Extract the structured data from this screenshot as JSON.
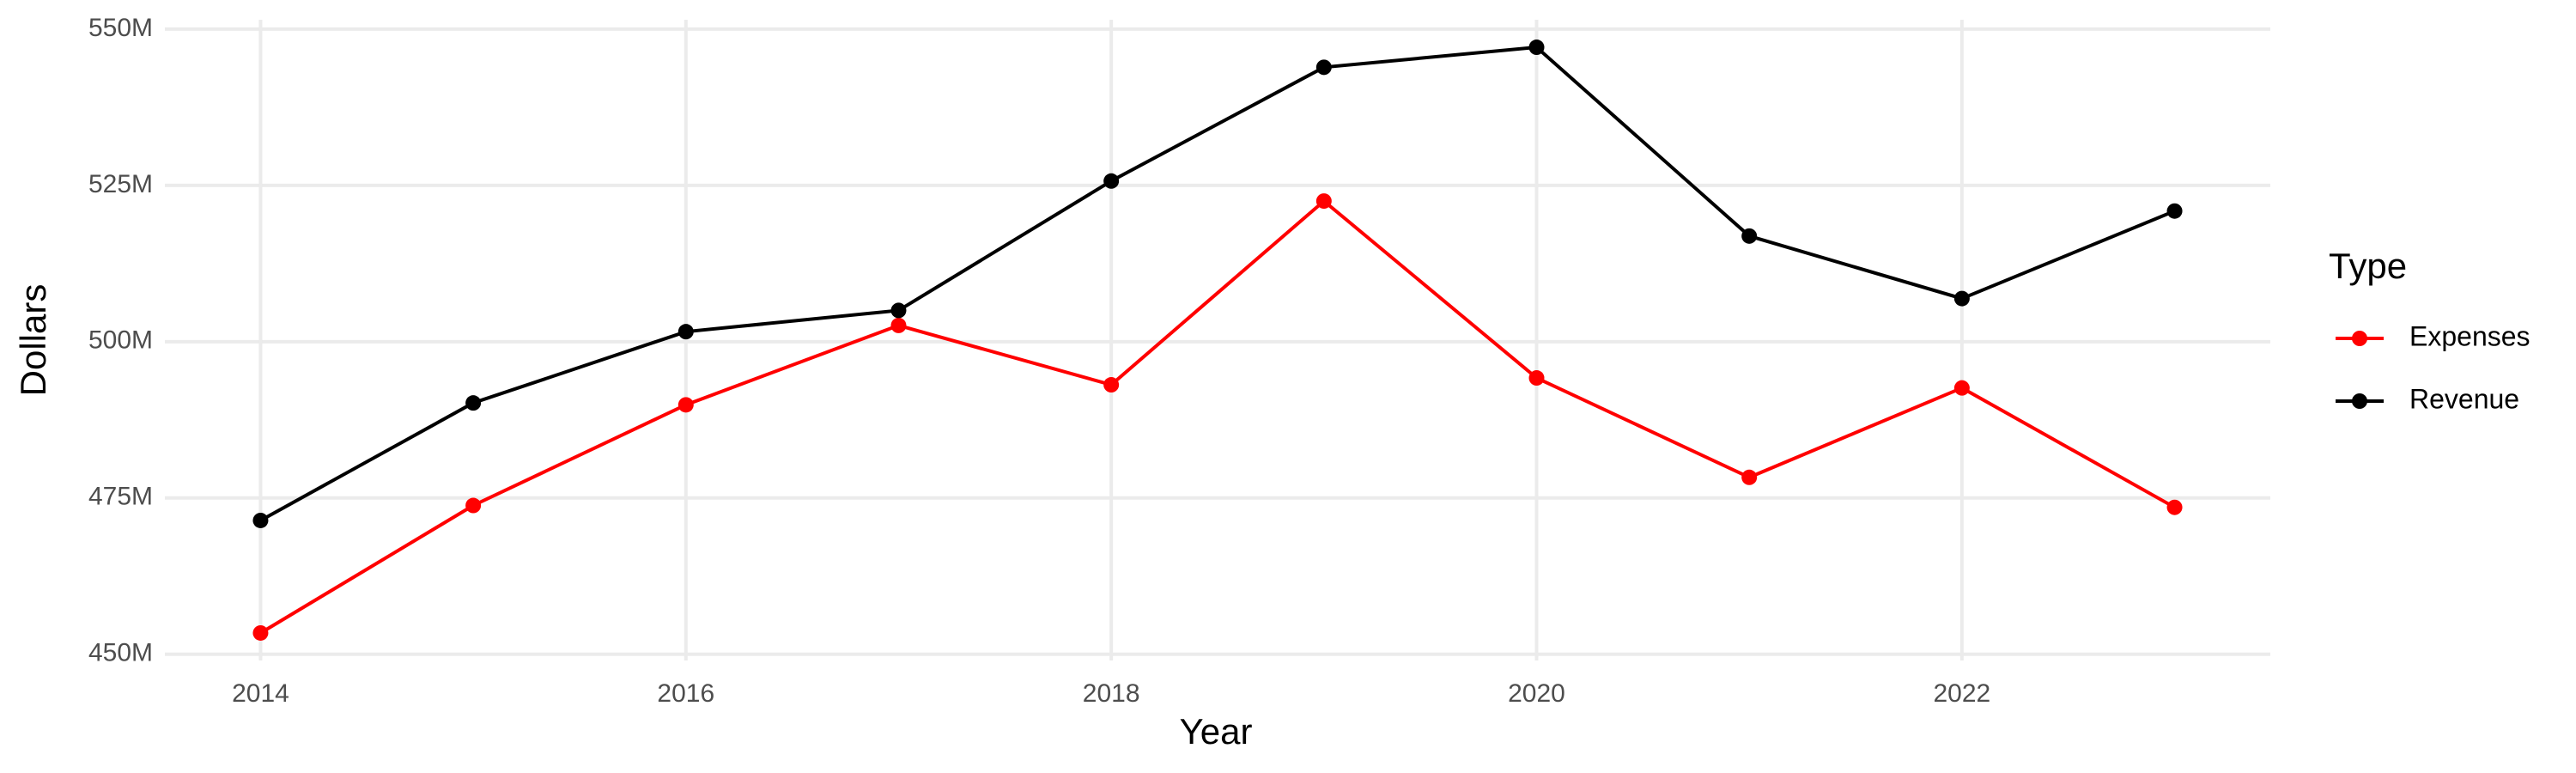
{
  "chart_data": {
    "type": "line",
    "x_label": "Year",
    "y_label": "Dollars",
    "legend_title": "Type",
    "x": [
      2014,
      2015,
      2016,
      2017,
      2018,
      2019,
      2020,
      2021,
      2022,
      2023
    ],
    "series": [
      {
        "name": "Expenses",
        "color": "#ff0000",
        "values": [
          453400000,
          473800000,
          489900000,
          502600000,
          493100000,
          522500000,
          494200000,
          478300000,
          492600000,
          473500000
        ]
      },
      {
        "name": "Revenue",
        "color": "#000000",
        "values": [
          471400000,
          490200000,
          501600000,
          505000000,
          525700000,
          543900000,
          547100000,
          516900000,
          506900000,
          520900000
        ]
      }
    ],
    "xlim": [
      2013.55,
      2023.45
    ],
    "xticks": [
      2014,
      2016,
      2018,
      2020,
      2022
    ],
    "ylim": [
      449000000,
      551500000
    ],
    "yticks": [
      {
        "value": 450000000,
        "label": "450M"
      },
      {
        "value": 475000000,
        "label": "475M"
      },
      {
        "value": 500000000,
        "label": "500M"
      },
      {
        "value": 525000000,
        "label": "525M"
      },
      {
        "value": 550000000,
        "label": "550M"
      }
    ],
    "grid": true,
    "legend": "right"
  }
}
